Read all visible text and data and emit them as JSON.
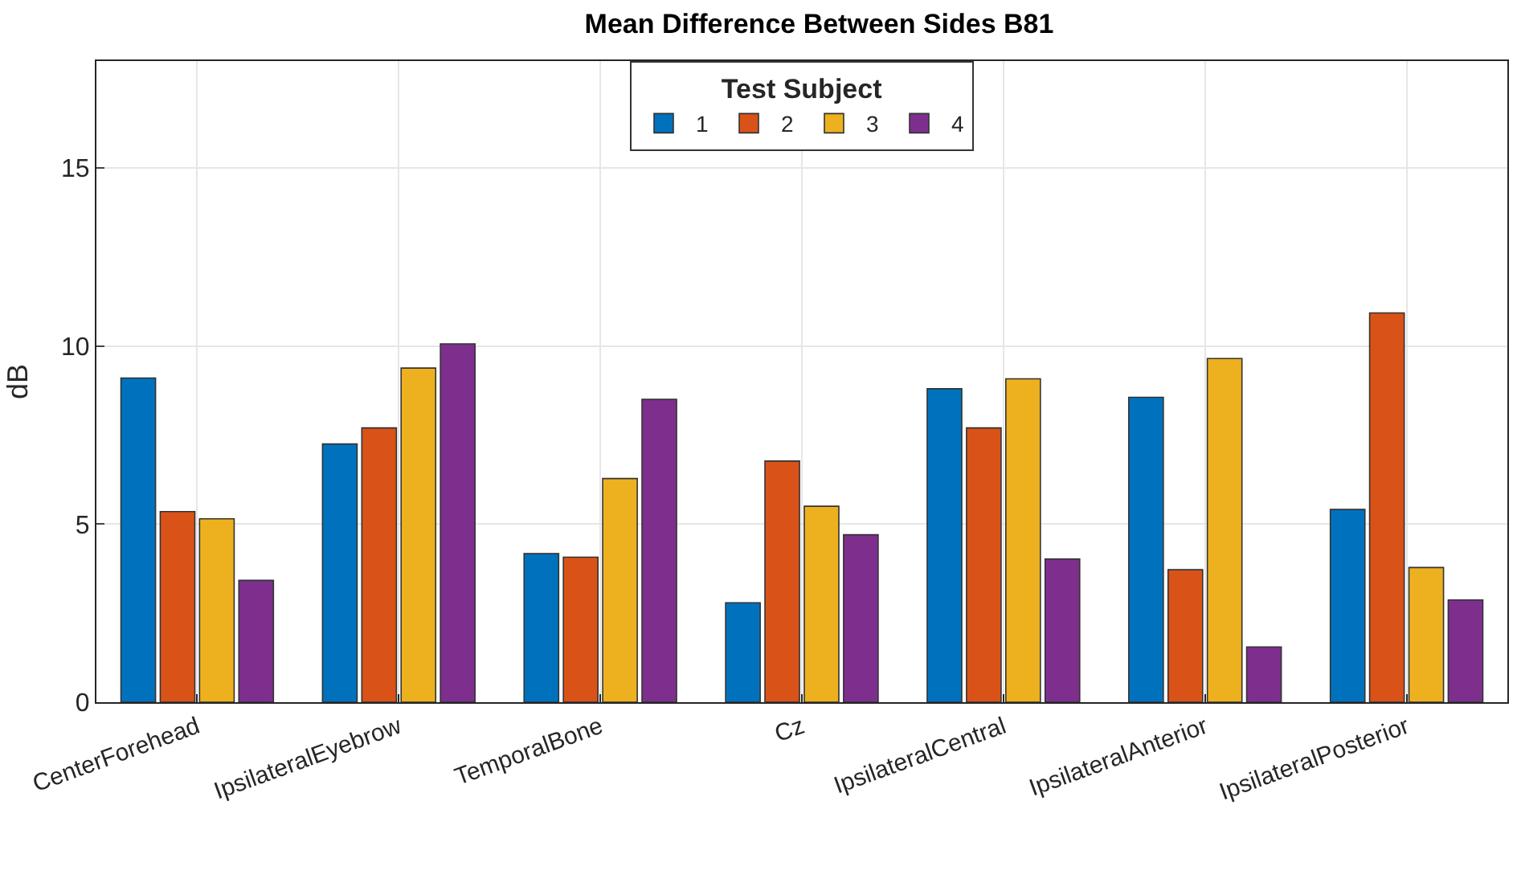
{
  "chart_data": {
    "type": "bar",
    "title": "Mean Difference Between Sides B81",
    "ylabel": "dB",
    "legend_title": "Test Subject",
    "categories": [
      "CenterForehead",
      "IpsilateralEyebrow",
      "TemporalBone",
      "Cz",
      "IpsilateralCentral",
      "IpsilateralAnterior",
      "IpsilateralPosterior"
    ],
    "series": [
      {
        "name": "1",
        "color": "#0072bd",
        "values": [
          9.1,
          7.25,
          4.17,
          2.79,
          8.8,
          8.56,
          5.41
        ]
      },
      {
        "name": "2",
        "color": "#d95319",
        "values": [
          5.35,
          7.7,
          4.07,
          6.77,
          7.7,
          3.72,
          10.93
        ]
      },
      {
        "name": "3",
        "color": "#edb120",
        "values": [
          5.15,
          9.38,
          6.28,
          5.5,
          9.08,
          9.65,
          3.78
        ]
      },
      {
        "name": "4",
        "color": "#7e2f8e",
        "values": [
          3.42,
          10.06,
          8.5,
          4.7,
          4.02,
          1.55,
          2.87
        ]
      }
    ],
    "ylim": [
      0,
      18
    ],
    "yticks": [
      0,
      5,
      10,
      15
    ],
    "grid": true,
    "legend": "top"
  }
}
